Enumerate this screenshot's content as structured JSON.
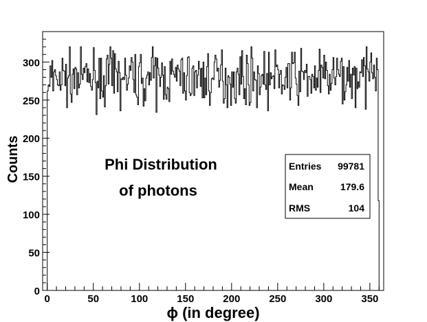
{
  "chart_data": {
    "type": "histogram",
    "title": "",
    "xlabel": "ϕ (in degree)",
    "ylabel": "Counts",
    "xlim": [
      -5,
      365
    ],
    "ylim": [
      0,
      340
    ],
    "xticks": [
      0,
      50,
      100,
      150,
      200,
      250,
      300,
      350
    ],
    "yticks": [
      0,
      50,
      100,
      150,
      200,
      250,
      300
    ],
    "grid": false,
    "bin_width": 1,
    "bins_start": 0,
    "bins_end": 360,
    "values_first_bins": [
      262,
      270,
      268,
      295,
      280,
      302,
      262,
      287,
      290,
      282
    ],
    "values_last_bins": [
      275,
      300,
      312,
      286,
      278,
      296,
      280,
      262,
      305,
      290,
      118
    ],
    "value_range_typical": [
      231,
      320
    ],
    "annotation": [
      "Phi Distribution",
      "of photons"
    ],
    "stats": [
      {
        "label": "Entries",
        "value": "99781"
      },
      {
        "label": "Mean",
        "value": "179.6"
      },
      {
        "label": "RMS",
        "value": "104"
      }
    ]
  }
}
